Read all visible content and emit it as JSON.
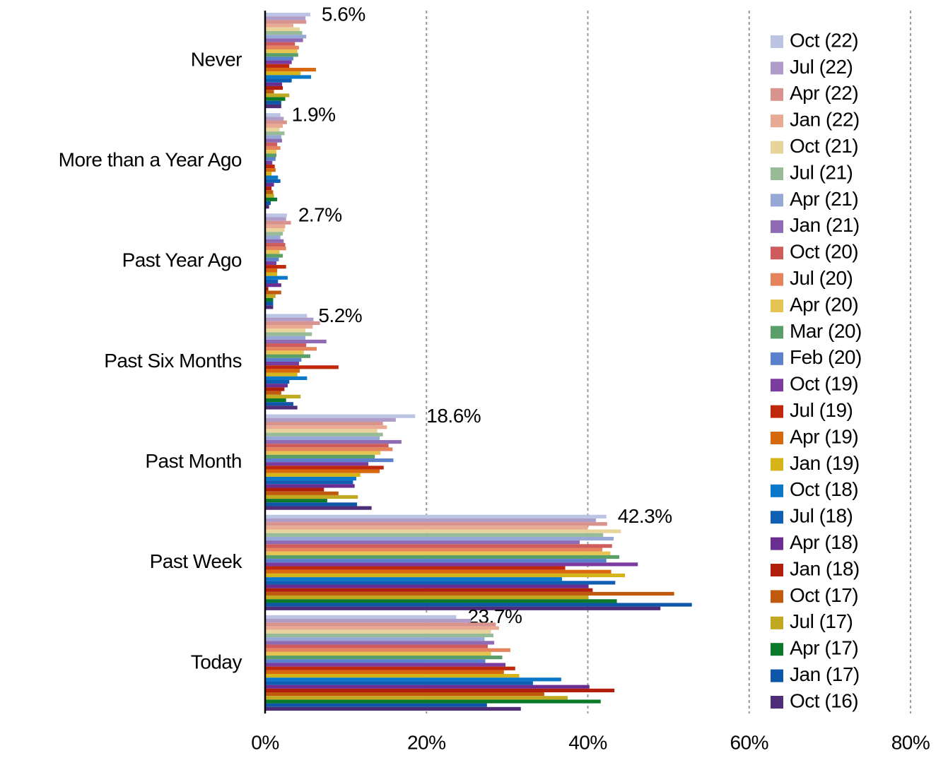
{
  "chart_data": {
    "type": "hbar",
    "categories": [
      "Never",
      "More than a Year Ago",
      "Past Year Ago",
      "Past Six Months",
      "Past Month",
      "Past Week",
      "Today"
    ],
    "xlim": [
      0,
      80
    ],
    "xticks": [
      {
        "value": 0,
        "label": "0%"
      },
      {
        "value": 20,
        "label": "20%"
      },
      {
        "value": 40,
        "label": "40%"
      },
      {
        "value": 60,
        "label": "60%"
      },
      {
        "value": 80,
        "label": "80%"
      }
    ],
    "grid": true,
    "legend": "right",
    "series": [
      {
        "name": "Oct (22)",
        "color": "#bcc4e4",
        "values": [
          5.6,
          1.9,
          2.7,
          5.2,
          18.6,
          42.3,
          23.7
        ],
        "value_labels": [
          "5.6%",
          "1.9%",
          "2.7%",
          "5.2%",
          "18.6%",
          "42.3%",
          "23.7%"
        ]
      },
      {
        "name": "Jul (22)",
        "color": "#b09cc8",
        "values": [
          5.0,
          2.3,
          2.6,
          6.0,
          16.2,
          41.0,
          25.5
        ]
      },
      {
        "name": "Apr (22)",
        "color": "#d9938e",
        "values": [
          5.1,
          2.7,
          3.2,
          6.8,
          14.6,
          42.4,
          28.6
        ]
      },
      {
        "name": "Jan (22)",
        "color": "#e9aa94",
        "values": [
          3.5,
          2.2,
          2.5,
          5.9,
          15.1,
          40.0,
          29.0
        ]
      },
      {
        "name": "Oct (21)",
        "color": "#e8d49a",
        "values": [
          4.3,
          1.8,
          2.4,
          5.0,
          13.9,
          44.1,
          28.0
        ]
      },
      {
        "name": "Jul (21)",
        "color": "#97ba97",
        "values": [
          4.6,
          2.4,
          2.2,
          5.8,
          14.6,
          41.9,
          28.3
        ]
      },
      {
        "name": "Apr (21)",
        "color": "#97a8d6",
        "values": [
          5.1,
          2.0,
          1.9,
          5.0,
          14.2,
          43.2,
          27.2
        ]
      },
      {
        "name": "Jan (21)",
        "color": "#8e6bb4",
        "values": [
          4.7,
          2.1,
          2.3,
          7.6,
          16.9,
          39.0,
          28.4
        ]
      },
      {
        "name": "Oct (20)",
        "color": "#cf5c5c",
        "values": [
          3.7,
          1.5,
          2.5,
          5.1,
          15.3,
          43.0,
          27.6
        ]
      },
      {
        "name": "Jul (20)",
        "color": "#e5845c",
        "values": [
          4.2,
          1.9,
          2.6,
          6.4,
          15.8,
          41.8,
          30.4
        ]
      },
      {
        "name": "Apr (20)",
        "color": "#e6c452",
        "values": [
          4.0,
          1.4,
          1.8,
          4.8,
          14.3,
          42.8,
          28.0
        ]
      },
      {
        "name": "Mar (20)",
        "color": "#5a9e68",
        "values": [
          4.1,
          1.4,
          2.2,
          5.6,
          13.6,
          43.9,
          29.4
        ]
      },
      {
        "name": "Feb (20)",
        "color": "#5b80cc",
        "values": [
          3.5,
          1.3,
          1.7,
          4.5,
          15.9,
          42.3,
          27.3
        ]
      },
      {
        "name": "Oct (19)",
        "color": "#7a3c9e",
        "values": [
          3.3,
          0.9,
          1.4,
          4.2,
          12.8,
          46.2,
          29.8
        ]
      },
      {
        "name": "Jul (19)",
        "color": "#c0280c",
        "values": [
          3.0,
          1.2,
          2.6,
          9.1,
          14.7,
          37.2,
          31.0
        ]
      },
      {
        "name": "Apr (19)",
        "color": "#d8680e",
        "values": [
          6.3,
          1.3,
          1.5,
          4.3,
          14.2,
          42.9,
          29.6
        ]
      },
      {
        "name": "Jan (19)",
        "color": "#d4b418",
        "values": [
          4.4,
          0.8,
          1.5,
          4.0,
          11.8,
          44.6,
          31.5
        ]
      },
      {
        "name": "Oct (18)",
        "color": "#0a78c8",
        "values": [
          5.7,
          1.6,
          2.8,
          5.2,
          11.3,
          36.8,
          36.7
        ]
      },
      {
        "name": "Jul (18)",
        "color": "#0e5eb4",
        "values": [
          3.3,
          1.9,
          1.6,
          3.0,
          10.9,
          43.4,
          33.2
        ]
      },
      {
        "name": "Apr (18)",
        "color": "#6a2e92",
        "values": [
          2.1,
          1.1,
          2.0,
          2.8,
          11.1,
          40.1,
          40.2
        ]
      },
      {
        "name": "Jan (18)",
        "color": "#b01e0c",
        "values": [
          2.2,
          0.8,
          0.4,
          2.4,
          7.3,
          40.6,
          43.3
        ]
      },
      {
        "name": "Oct (17)",
        "color": "#c05a0e",
        "values": [
          1.1,
          1.0,
          2.0,
          2.0,
          9.1,
          50.7,
          34.6
        ]
      },
      {
        "name": "Jul (17)",
        "color": "#c0a820",
        "values": [
          3.0,
          1.1,
          1.3,
          4.4,
          11.5,
          40.1,
          37.5
        ]
      },
      {
        "name": "Apr (17)",
        "color": "#0a7a2a",
        "values": [
          2.5,
          1.5,
          1.0,
          2.6,
          7.7,
          43.6,
          41.6
        ]
      },
      {
        "name": "Jan (17)",
        "color": "#0e56a8",
        "values": [
          2.0,
          0.7,
          1.0,
          3.5,
          11.4,
          52.9,
          27.5
        ]
      },
      {
        "name": "Oct (16)",
        "color": "#4e2c78",
        "values": [
          2.0,
          0.5,
          1.0,
          4.0,
          13.2,
          49.0,
          31.7
        ]
      }
    ]
  }
}
